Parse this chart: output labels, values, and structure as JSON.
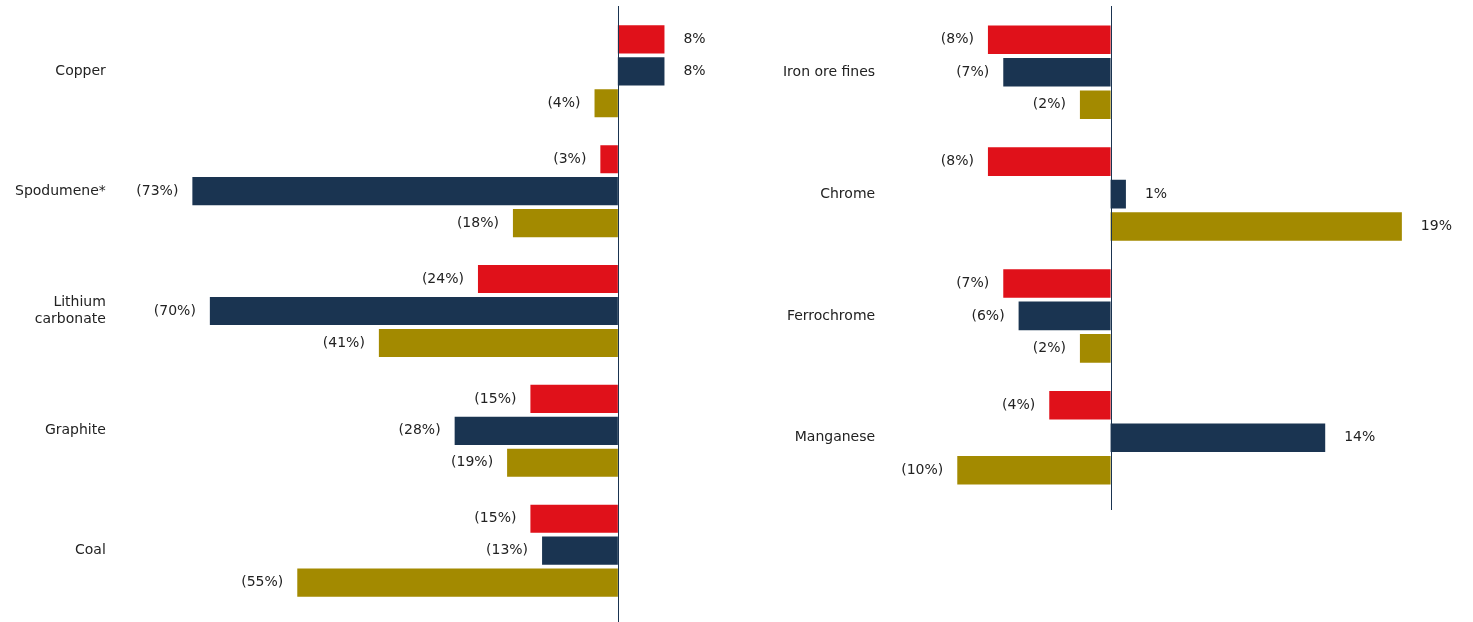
{
  "chart_data": [
    {
      "type": "bar",
      "orientation": "horizontal",
      "tick_labels": "y",
      "grid": false,
      "categories": [
        "Copper",
        "Spodumene*",
        "Lithium carbonate",
        "Graphite",
        "Coal"
      ],
      "series": [
        {
          "color": "#e0111a",
          "values": [
            8,
            -3,
            -24,
            -15,
            -15
          ],
          "value_labels": [
            "8%",
            "(3%)",
            "(24%)",
            "(15%)",
            "(15%)"
          ]
        },
        {
          "color": "#1a3451",
          "values": [
            8,
            -73,
            -70,
            -28,
            -13
          ],
          "value_labels": [
            "8%",
            "(73%)",
            "(70%)",
            "(28%)",
            "(13%)"
          ]
        },
        {
          "color": "#a38a00",
          "values": [
            -4,
            -18,
            -41,
            -19,
            -55
          ],
          "value_labels": [
            "(4%)",
            "(18%)",
            "(41%)",
            "(19%)",
            "(55%)"
          ]
        }
      ]
    },
    {
      "type": "bar",
      "orientation": "horizontal",
      "tick_labels": "y",
      "grid": false,
      "categories": [
        "Iron ore fines",
        "Chrome",
        "Ferrochrome",
        "Manganese"
      ],
      "series": [
        {
          "color": "#e0111a",
          "values": [
            -8,
            -8,
            -7,
            -4
          ],
          "value_labels": [
            "(8%)",
            "(8%)",
            "(7%)",
            "(4%)"
          ]
        },
        {
          "color": "#1a3451",
          "values": [
            -7,
            1,
            -6,
            14
          ],
          "value_labels": [
            "(7%)",
            "1%",
            "(6%)",
            "14%"
          ]
        },
        {
          "color": "#a38a00",
          "values": [
            -2,
            19,
            -2,
            -10
          ],
          "value_labels": [
            "(2%)",
            "19%",
            "(2%)",
            "(10%)"
          ]
        }
      ]
    }
  ]
}
